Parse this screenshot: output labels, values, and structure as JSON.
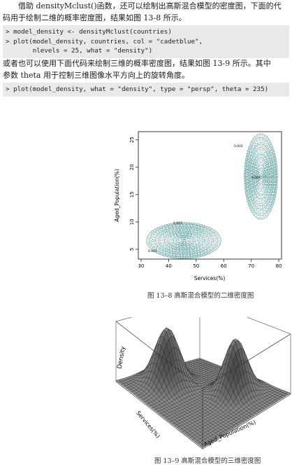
{
  "para1": [
    "借助 densityMclust()函数，还可以绘制出高斯混合模型的密度图，下面的代",
    "码用于绘制二维的概率密度图，结果如图 13-8 所示。"
  ],
  "code1": [
    "> model_density <- densityMclust(countries)",
    "> plot(model_density, countries, col = \"cadetblue\",",
    "       nlevels = 25, what = \"density\")"
  ],
  "para2": [
    "或者也可以使用下面代码来绘制三维的概率密度图，结果如图 13-9 所示。其中",
    "参数 theta 用于控制三维图像水平方向上的旋转角度。"
  ],
  "code2": [
    "> plot(model_density, what = \"density\", type = \"persp\", theta = 235)"
  ],
  "fig1": {
    "caption": "图 13–8   高斯混合模型的二维密度图",
    "xlabel": "Services(%)",
    "ylabel": "Aged_Population(%)",
    "xticks": [
      "30",
      "40",
      "50",
      "60",
      "70",
      "80"
    ],
    "yticks": [
      "5",
      "10",
      "15",
      "20",
      "25"
    ],
    "contour_labels": [
      "0.001",
      "0.002",
      "0.003",
      "0.004"
    ],
    "line_color": "#5f9ea0"
  },
  "fig2": {
    "caption": "图 13–9   高斯混合模型的三维密度图",
    "zlabel": "Density",
    "xlabel": "Services(%)",
    "ylabel": "Aged_Population(%)"
  }
}
